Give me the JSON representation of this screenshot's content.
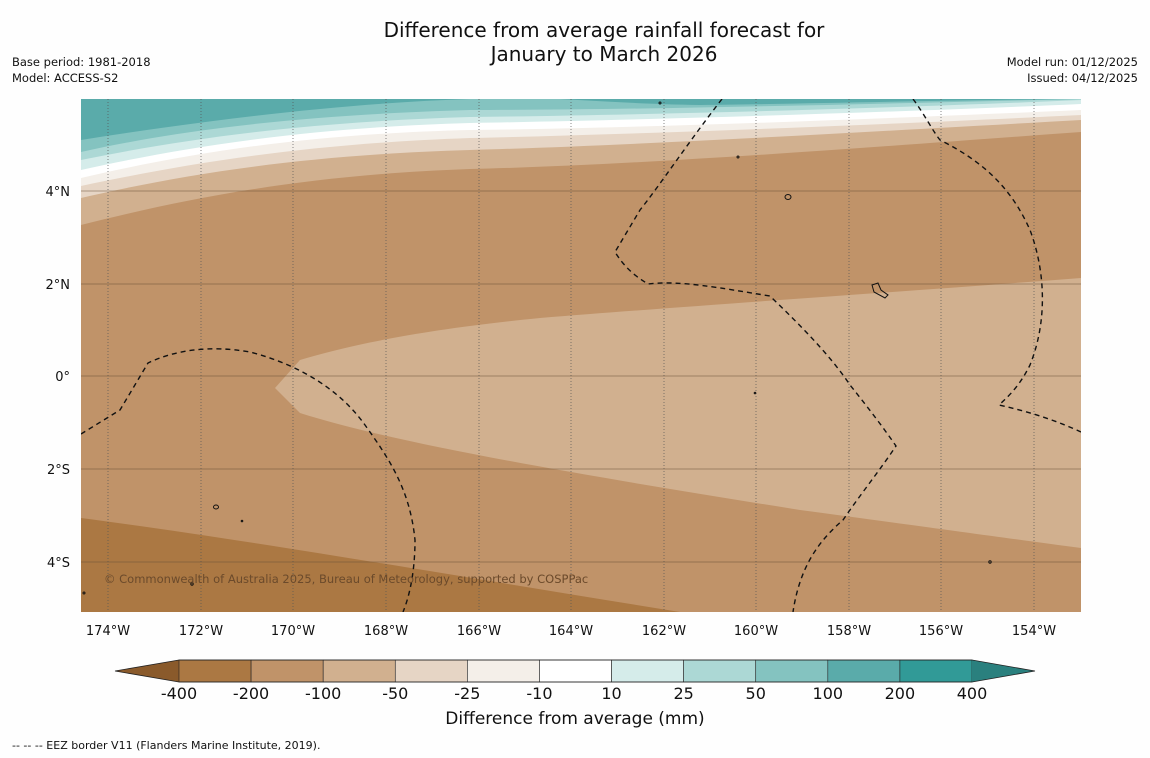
{
  "title_line1": "Difference from average rainfall forecast for",
  "title_line2": "January to March 2026",
  "meta_left": [
    "Base period: 1981-2018",
    "Model: ACCESS-S2"
  ],
  "meta_right": [
    "Model run: 01/12/2025",
    "Issued: 04/12/2025"
  ],
  "lon_labels": [
    "174°W",
    "172°W",
    "170°W",
    "168°W",
    "166°W",
    "164°W",
    "162°W",
    "160°W",
    "158°W",
    "156°W",
    "154°W"
  ],
  "lat_labels": [
    "4°N",
    "2°N",
    "0°",
    "2°S",
    "4°S"
  ],
  "copyright": "© Commonwealth of Australia 2025, Bureau of Meteorology, supported by COSPPac",
  "colorbar": {
    "title": "Difference from average (mm)",
    "ticks": [
      "-400",
      "-200",
      "-100",
      "-50",
      "-25",
      "-10",
      "10",
      "25",
      "50",
      "100",
      "200",
      "400"
    ],
    "colors": [
      "#8a5a2b",
      "#ab7843",
      "#c09369",
      "#d1b08f",
      "#e6d5c5",
      "#f4efe9",
      "#ffffff",
      "#d5ecea",
      "#acd8d5",
      "#84c3c0",
      "#5aabaa",
      "#319a97",
      "#2a807e"
    ]
  },
  "footnote": "--  --  -- EEZ border V11 (Flanders Marine Institute, 2019)."
}
